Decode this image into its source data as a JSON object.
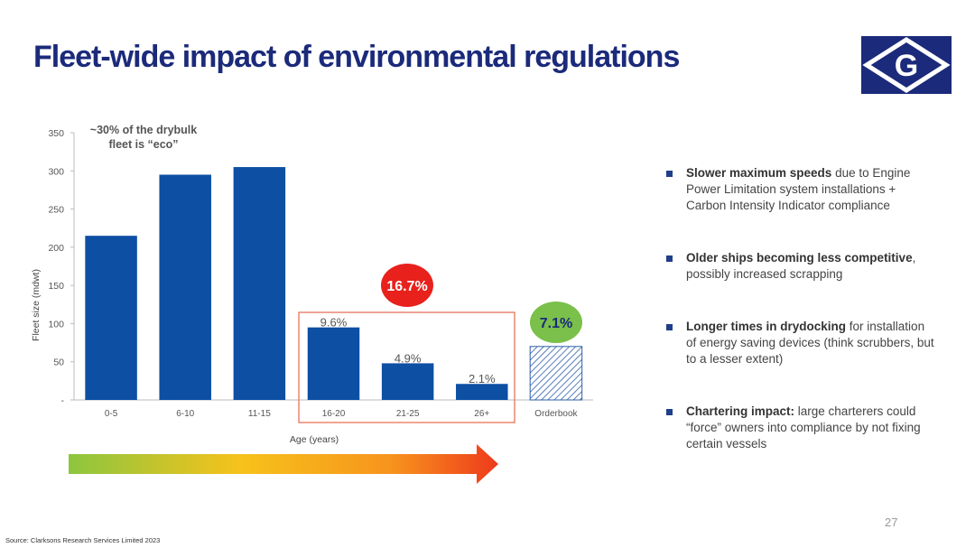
{
  "title": "Fleet-wide impact of environmental regulations",
  "logo": {
    "letter": "G",
    "icon": "company-diamond-logo",
    "color": "#1b2a7a"
  },
  "chart_data": {
    "type": "bar",
    "categories": [
      "0-5",
      "6-10",
      "11-15",
      "16-20",
      "21-25",
      "26+",
      "Orderbook"
    ],
    "values": [
      215,
      295,
      305,
      95,
      48,
      21,
      70
    ],
    "bar_labels": [
      "",
      "",
      "",
      "9.6%",
      "4.9%",
      "2.1%",
      ""
    ],
    "ylabel": "Fleet size (mdwt)",
    "xlabel": "Age (years)",
    "ylim": [
      0,
      350
    ],
    "yticks": [
      0,
      50,
      100,
      150,
      200,
      250,
      300,
      350
    ],
    "ytick_labels": [
      "-",
      "50",
      "100",
      "150",
      "200",
      "250",
      "300",
      "350"
    ],
    "grid": false,
    "colors": {
      "bar": "#0d4fa3",
      "orderbook_hatch": "#2e5fa8"
    },
    "annotations": {
      "eco_note_line1": "~30% of the drybulk",
      "eco_note_line2": "fleet is “eco”",
      "older_share": "16.7%",
      "orderbook_share": "7.1%"
    },
    "annotation_colors": {
      "older_share": "#e8211c",
      "orderbook_share": "#7ac04a",
      "highlight_box": "#e8735a"
    }
  },
  "bullets": [
    {
      "bold": "Slower maximum speeds",
      "text": " due to Engine Power Limitation system installations + Carbon Intensity Indicator compliance"
    },
    {
      "bold": "Older ships becoming less competitive",
      "text": ", possibly increased scrapping"
    },
    {
      "bold": "Longer times in drydocking",
      "text": " for installation of energy saving devices (think scrubbers, but to a lesser extent)"
    },
    {
      "bold": "Chartering impact:",
      "text": " large charterers could “force” owners into compliance by not fixing certain vessels"
    }
  ],
  "page_number": "27",
  "source": "Source: Clarksons Research Services Limited 2023"
}
